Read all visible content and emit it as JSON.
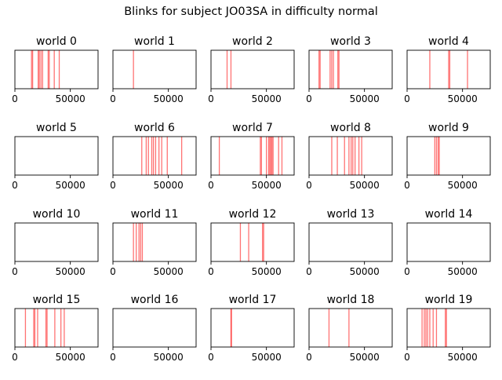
{
  "title": "Blinks for subject JO03SA in difficulty normal",
  "chart_data": {
    "type": "event-lines",
    "title": "Blinks for subject JO03SA in difficulty normal",
    "xlim": [
      0,
      75000
    ],
    "xticks": [
      0,
      50000
    ],
    "line_color": "#ff0000",
    "grid": false,
    "subplots": [
      {
        "label": "world 0",
        "x": [
          15000,
          16000,
          21000,
          22000,
          23500,
          25000,
          30000,
          31000,
          35500,
          40000
        ]
      },
      {
        "label": "world 1",
        "x": [
          18500
        ]
      },
      {
        "label": "world 2",
        "x": [
          14500,
          18000
        ]
      },
      {
        "label": "world 3",
        "x": [
          9000,
          10000,
          19000,
          20500,
          22000,
          26000,
          27000
        ]
      },
      {
        "label": "world 4",
        "x": [
          20500,
          37500,
          38500,
          54500
        ]
      },
      {
        "label": "world 5",
        "x": []
      },
      {
        "label": "world 6",
        "x": [
          26000,
          30000,
          32000,
          35000,
          36500,
          38500,
          41500,
          44000,
          49000,
          62000
        ]
      },
      {
        "label": "world 7",
        "x": [
          7500,
          44500,
          45500,
          50000,
          52000,
          53000,
          54000,
          55000,
          56000,
          61000,
          64000
        ]
      },
      {
        "label": "world 8",
        "x": [
          20500,
          25500,
          32000,
          36000,
          38000,
          39500,
          41500,
          45000,
          47500
        ]
      },
      {
        "label": "world 9",
        "x": [
          25000,
          26500,
          28000,
          29000
        ]
      },
      {
        "label": "world 10",
        "x": []
      },
      {
        "label": "world 11",
        "x": [
          18500,
          21000,
          23500,
          25000,
          26500
        ]
      },
      {
        "label": "world 12",
        "x": [
          26500,
          34000,
          46500,
          47500
        ]
      },
      {
        "label": "world 13",
        "x": []
      },
      {
        "label": "world 14",
        "x": []
      },
      {
        "label": "world 15",
        "x": [
          9500,
          17000,
          18000,
          20500,
          28000,
          29000,
          36000,
          41500,
          44500
        ]
      },
      {
        "label": "world 16",
        "x": []
      },
      {
        "label": "world 17",
        "x": [
          18000,
          18500
        ]
      },
      {
        "label": "world 18",
        "x": [
          18000,
          36000
        ]
      },
      {
        "label": "world 19",
        "x": [
          13500,
          15500,
          17000,
          18500,
          20500,
          23500,
          26500,
          34500,
          35500
        ]
      }
    ]
  }
}
